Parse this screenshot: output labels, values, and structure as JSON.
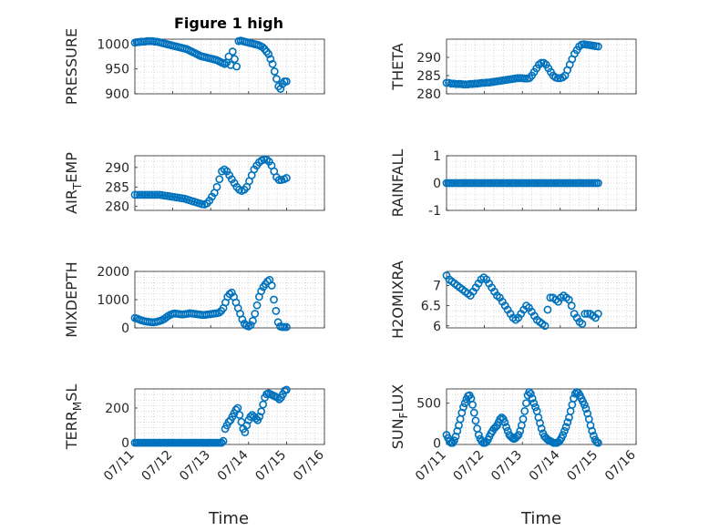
{
  "figure": {
    "title": "Figure 1 high",
    "marker_color": "#0072BD",
    "grid_color": "#bfbfbf",
    "axis_color": "#262626"
  },
  "chart_data": [
    {
      "type": "scatter",
      "panel": "top-left",
      "ylabel": "PRESSURE",
      "ylim": [
        900,
        1010
      ],
      "yticks": [
        "900",
        "950",
        "1000"
      ],
      "ytick_values": [
        900,
        950,
        1000
      ],
      "x_values_from_shared": true,
      "y": [
        1003,
        1004,
        1004,
        1005,
        1005,
        1005,
        1006,
        1006,
        1006,
        1006,
        1005,
        1005,
        1004,
        1003,
        1002,
        1001,
        1000,
        999,
        998,
        997,
        996,
        995,
        994,
        993,
        992,
        991,
        990,
        988,
        986,
        984,
        982,
        980,
        978,
        976,
        975,
        974,
        973,
        972,
        971,
        970,
        969,
        968,
        966,
        964,
        962,
        960,
        963,
        975,
        958,
        985,
        970,
        955,
        1006,
        1007,
        1006,
        1005,
        1004,
        1003,
        1002,
        1001,
        1000,
        999,
        998,
        996,
        994,
        990,
        985,
        980,
        970,
        960,
        945,
        930,
        915,
        910,
        920,
        925,
        925
      ]
    },
    {
      "type": "scatter",
      "panel": "top-right",
      "ylabel": "THETA",
      "ylim": [
        280,
        295
      ],
      "yticks": [
        "280",
        "285",
        "290"
      ],
      "ytick_values": [
        280,
        285,
        290
      ],
      "y": [
        283,
        283,
        282.8,
        282.8,
        282.7,
        282.7,
        282.7,
        282.6,
        282.6,
        282.6,
        282.7,
        282.7,
        282.8,
        282.8,
        282.9,
        283,
        283,
        283.1,
        283.1,
        283.2,
        283.3,
        283.4,
        283.5,
        283.6,
        283.7,
        283.8,
        283.9,
        284,
        284.1,
        284.2,
        284.3,
        284.3,
        284.3,
        284.2,
        284.2,
        284.3,
        285,
        286,
        287,
        288,
        288.5,
        288.5,
        288,
        287,
        286,
        285,
        284.5,
        284.3,
        284.3,
        284.5,
        285,
        286.5,
        288,
        289.5,
        291,
        292,
        293,
        293.5,
        293.6,
        293.5,
        293.4,
        293.3,
        293.2,
        293.1,
        293
      ]
    },
    {
      "type": "scatter",
      "panel": "row2-left",
      "ylabel": "AIR_TEMP",
      "ylim": [
        279,
        293
      ],
      "yticks": [
        "280",
        "285",
        "290"
      ],
      "ytick_values": [
        280,
        285,
        290
      ],
      "y": [
        283,
        283,
        283,
        283,
        283,
        283,
        283,
        283,
        283,
        283,
        283,
        282.9,
        282.8,
        282.7,
        282.6,
        282.5,
        282.4,
        282.3,
        282.2,
        282.1,
        282,
        281.8,
        281.6,
        281.4,
        281.2,
        281,
        280.8,
        280.6,
        280.5,
        280.8,
        281.5,
        282.5,
        283.5,
        285,
        287,
        289,
        289.5,
        289,
        288,
        287,
        286,
        285,
        284.3,
        284,
        284.3,
        285,
        286.5,
        288,
        289.5,
        290.5,
        291.3,
        291.8,
        292,
        292,
        291.5,
        290.5,
        289,
        287.5,
        286.8,
        286.8,
        287,
        287.3
      ]
    },
    {
      "type": "scatter",
      "panel": "row2-right",
      "ylabel": "RAINFALL",
      "ylim": [
        -1,
        1
      ],
      "yticks": [
        "-1",
        "0",
        "1"
      ],
      "ytick_values": [
        -1,
        0,
        1
      ],
      "y_constant": 0
    },
    {
      "type": "scatter",
      "panel": "row3-left",
      "ylabel": "MIXDEPTH",
      "ylim": [
        0,
        2000
      ],
      "yticks": [
        "0",
        "1000",
        "2000"
      ],
      "ytick_values": [
        0,
        1000,
        2000
      ],
      "y": [
        350,
        330,
        300,
        270,
        250,
        230,
        220,
        210,
        200,
        200,
        210,
        230,
        250,
        280,
        320,
        380,
        430,
        470,
        500,
        510,
        500,
        490,
        480,
        480,
        490,
        500,
        520,
        510,
        500,
        490,
        480,
        470,
        460,
        460,
        470,
        480,
        490,
        500,
        510,
        520,
        540,
        600,
        700,
        900,
        1100,
        1200,
        1250,
        1100,
        900,
        700,
        500,
        300,
        150,
        80,
        50,
        100,
        250,
        500,
        800,
        1100,
        1300,
        1450,
        1550,
        1650,
        1700,
        1500,
        1000,
        600,
        200,
        50,
        30,
        30,
        30
      ]
    },
    {
      "type": "scatter",
      "panel": "row3-right",
      "ylabel": "H2OMIXRA",
      "ylim": [
        5.95,
        7.35
      ],
      "yticks": [
        "6",
        "6.5",
        "7"
      ],
      "ytick_values": [
        6,
        6.5,
        7
      ],
      "y": [
        7.25,
        7.15,
        7.1,
        7.05,
        7.0,
        6.95,
        6.9,
        6.85,
        6.8,
        6.75,
        6.85,
        6.95,
        7.05,
        7.15,
        7.2,
        7.15,
        7.05,
        6.95,
        6.85,
        6.75,
        6.7,
        6.6,
        6.5,
        6.4,
        6.3,
        6.2,
        6.15,
        6.2,
        6.3,
        6.4,
        6.5,
        6.45,
        6.35,
        6.25,
        6.15,
        6.1,
        6.05,
        6.0,
        6.4,
        6.7,
        6.7,
        6.65,
        6.6,
        6.7,
        6.75,
        6.7,
        6.65,
        6.5,
        6.3,
        6.2,
        6.1,
        6.05,
        6.3,
        6.3,
        6.3,
        6.25,
        6.2,
        6.3
      ]
    },
    {
      "type": "scatter",
      "panel": "bottom-left",
      "ylabel": "TERR_MSL",
      "ylim": [
        -10,
        310
      ],
      "yticks": [
        "0",
        "200"
      ],
      "ytick_values": [
        0,
        200
      ],
      "y": [
        0,
        0,
        0,
        0,
        0,
        0,
        0,
        0,
        0,
        0,
        0,
        0,
        0,
        0,
        0,
        0,
        0,
        0,
        0,
        0,
        0,
        0,
        0,
        0,
        0,
        0,
        0,
        0,
        0,
        0,
        0,
        0,
        0,
        0,
        0,
        0,
        0,
        0,
        0,
        0,
        0,
        0,
        0,
        0,
        0,
        0,
        0,
        0,
        0,
        10,
        80,
        100,
        120,
        130,
        150,
        170,
        190,
        200,
        160,
        120,
        80,
        60,
        100,
        130,
        150,
        160,
        150,
        140,
        130,
        150,
        180,
        220,
        260,
        280,
        285,
        280,
        275,
        270,
        265,
        260,
        250,
        260,
        280,
        300,
        305
      ]
    },
    {
      "type": "scatter",
      "panel": "bottom-right",
      "ylabel": "SUN_FLUX",
      "ylim": [
        -20,
        680
      ],
      "yticks": [
        "0",
        "500"
      ],
      "ytick_values": [
        0,
        500
      ],
      "y": [
        100,
        60,
        20,
        0,
        0,
        30,
        80,
        150,
        220,
        300,
        380,
        450,
        500,
        550,
        590,
        600,
        560,
        480,
        380,
        280,
        180,
        100,
        50,
        20,
        0,
        0,
        10,
        40,
        80,
        120,
        150,
        180,
        200,
        220,
        260,
        300,
        320,
        300,
        260,
        200,
        150,
        100,
        80,
        60,
        50,
        60,
        80,
        100,
        150,
        220,
        300,
        400,
        500,
        600,
        640,
        620,
        560,
        500,
        450,
        400,
        320,
        250,
        180,
        120,
        80,
        60,
        40,
        30,
        20,
        10,
        0,
        0,
        0,
        10,
        30,
        60,
        100,
        150,
        200,
        260,
        320,
        400,
        480,
        560,
        620,
        640,
        630,
        600,
        560,
        520,
        480,
        430,
        370,
        300,
        220,
        150,
        90,
        40,
        10,
        0
      ]
    }
  ],
  "shared_axis": {
    "xlabel": "Time",
    "xlim": [
      "07/11",
      "07/16"
    ],
    "xticks": [
      "07/11",
      "07/12",
      "07/13",
      "07/14",
      "07/15",
      "07/16"
    ],
    "data_start": "07/11",
    "data_end": "07/15"
  },
  "ylabel_display": {
    "air_temp": {
      "main": "AIR",
      "sub": "T",
      "rest": "EMP"
    },
    "terr_msl": {
      "main": "TERR",
      "sub": "M",
      "rest": "SL"
    },
    "sun_flux": {
      "main": "SUN",
      "sub": "F",
      "rest": "LUX"
    }
  }
}
